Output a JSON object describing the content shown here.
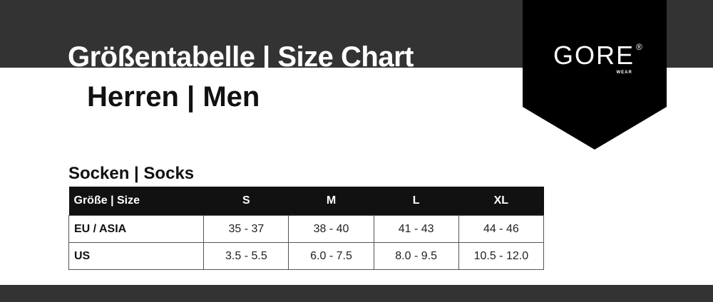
{
  "header": {
    "title": "Größentabelle | Size Chart",
    "subtitle": "Herren | Men"
  },
  "logo": {
    "text": "GORE",
    "registered": "®",
    "sub": "WEAR"
  },
  "section": {
    "title": "Socken | Socks"
  },
  "table": {
    "headers": [
      "Größe | Size",
      "S",
      "M",
      "L",
      "XL"
    ],
    "rows": [
      [
        "EU / ASIA",
        "35 - 37",
        "38 - 40",
        "41 - 43",
        "44 - 46"
      ],
      [
        "US",
        "3.5 - 5.5",
        "6.0 - 7.5",
        "8.0 - 9.5",
        "10.5 - 12.0"
      ]
    ]
  },
  "colors": {
    "band": "#333333",
    "badge": "#000000",
    "header_row": "#111111"
  }
}
